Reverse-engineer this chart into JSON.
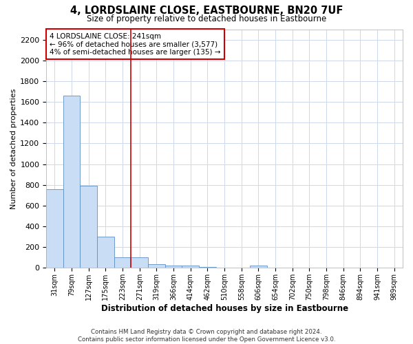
{
  "title": "4, LORDSLAINE CLOSE, EASTBOURNE, BN20 7UF",
  "subtitle": "Size of property relative to detached houses in Eastbourne",
  "xlabel": "Distribution of detached houses by size in Eastbourne",
  "ylabel": "Number of detached properties",
  "categories": [
    "31sqm",
    "79sqm",
    "127sqm",
    "175sqm",
    "223sqm",
    "271sqm",
    "319sqm",
    "366sqm",
    "414sqm",
    "462sqm",
    "510sqm",
    "558sqm",
    "606sqm",
    "654sqm",
    "702sqm",
    "750sqm",
    "798sqm",
    "846sqm",
    "894sqm",
    "941sqm",
    "989sqm"
  ],
  "values": [
    760,
    1660,
    790,
    300,
    105,
    105,
    35,
    25,
    20,
    10,
    0,
    0,
    25,
    0,
    0,
    0,
    0,
    0,
    0,
    0,
    0
  ],
  "bar_color": "#c9ddf5",
  "bar_edge_color": "#5b8ec4",
  "vline_x_index": 4.5,
  "vline_color": "#cc0000",
  "annotation_line1": "4 LORDSLAINE CLOSE: 241sqm",
  "annotation_line2": "← 96% of detached houses are smaller (3,577)",
  "annotation_line3": "4% of semi-detached houses are larger (135) →",
  "annotation_box_color": "#cc0000",
  "ylim": [
    0,
    2300
  ],
  "yticks": [
    0,
    200,
    400,
    600,
    800,
    1000,
    1200,
    1400,
    1600,
    1800,
    2000,
    2200
  ],
  "footer_line1": "Contains HM Land Registry data © Crown copyright and database right 2024.",
  "footer_line2": "Contains public sector information licensed under the Open Government Licence v3.0.",
  "bg_color": "#ffffff",
  "grid_color": "#cdd8eb"
}
